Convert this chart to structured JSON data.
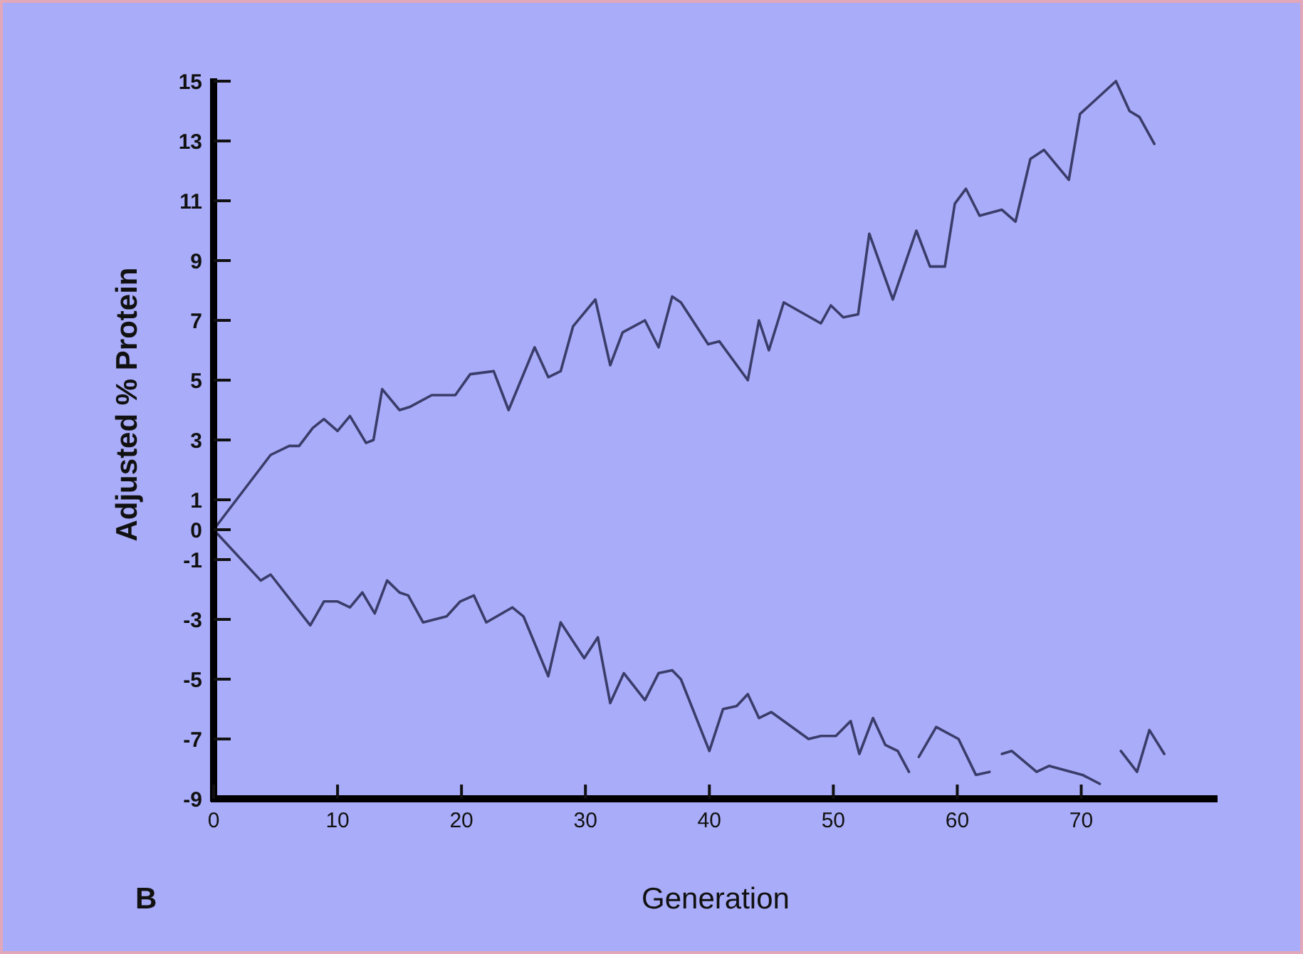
{
  "chart_data": {
    "type": "line",
    "xlabel": "Generation",
    "ylabel": "Adjusted % Protein",
    "annotations": [
      "B"
    ],
    "xlim": [
      0,
      81
    ],
    "ylim": [
      -9,
      15
    ],
    "xticks": [
      0,
      10,
      20,
      30,
      40,
      50,
      60,
      70
    ],
    "yticks": [
      15,
      13,
      11,
      9,
      7,
      5,
      3,
      1,
      0,
      -1,
      -3,
      -5,
      -7,
      -9
    ],
    "marker": "none",
    "line_style": "solid",
    "series": [
      {
        "color": "#3a3d6a",
        "x": [
          0,
          4.6,
          6.1,
          6.9,
          8,
          8.9,
          10,
          11,
          12.3,
          12.9,
          13.6,
          15,
          15.8,
          17.6,
          19.5,
          20.7,
          22.6,
          23.8,
          25.9,
          27,
          28,
          29,
          30.8,
          32,
          33,
          34.8,
          35.9,
          37,
          37.7,
          39.9,
          40.8,
          43.1,
          44,
          44.8,
          46,
          49,
          49.8,
          50.8,
          52,
          52.9,
          54.8,
          56.7,
          57.8,
          59,
          59.8,
          60.7,
          61.8,
          63.6,
          64.7,
          65.9,
          67,
          69,
          69.9,
          72.8,
          73.9,
          74.7,
          75.9
        ],
        "values": [
          0,
          2.5,
          2.8,
          2.8,
          3.4,
          3.7,
          3.3,
          3.8,
          2.9,
          3.0,
          4.7,
          4.0,
          4.1,
          4.5,
          4.5,
          5.2,
          5.3,
          4.0,
          6.1,
          5.1,
          5.3,
          6.8,
          7.7,
          5.5,
          6.6,
          7.0,
          6.1,
          7.8,
          7.6,
          6.2,
          6.3,
          5.0,
          7.0,
          6.0,
          7.6,
          6.9,
          7.5,
          7.1,
          7.2,
          9.9,
          7.7,
          10.0,
          8.8,
          8.8,
          10.9,
          11.4,
          10.5,
          10.7,
          10.3,
          12.4,
          12.7,
          11.7,
          13.9,
          15.0,
          14.0,
          13.8,
          12.9
        ]
      },
      {
        "color": "#3a3d6a",
        "x": [
          0,
          3.8,
          4.6,
          7.8,
          8.9,
          10,
          11,
          12,
          13,
          14,
          15,
          15.7,
          16.9,
          18.8,
          19.9,
          21,
          22,
          24.1,
          25,
          27,
          28,
          29.9,
          31,
          32,
          33.1,
          34.8,
          35.9,
          37,
          37.7,
          40,
          41.1,
          42.2,
          43.1,
          44,
          45,
          48,
          49,
          50.2,
          51.4,
          52.1,
          53.2,
          54.2,
          55.2,
          56.1,
          56.5,
          56.9,
          58.3,
          60.1,
          61.5,
          62.6,
          63.1,
          63.6,
          64.4,
          66.4,
          67.4,
          70.1,
          71.5,
          72.4,
          73.2,
          74.5,
          75.5,
          76.7
        ],
        "values": [
          0,
          -1.7,
          -1.5,
          -3.2,
          -2.4,
          -2.4,
          -2.6,
          -2.1,
          -2.8,
          -1.7,
          -2.1,
          -2.2,
          -3.1,
          -2.9,
          -2.4,
          -2.2,
          -3.1,
          -2.6,
          -2.9,
          -4.9,
          -3.1,
          -4.3,
          -3.6,
          -5.8,
          -4.8,
          -5.7,
          -4.8,
          -4.7,
          -5.0,
          -7.4,
          -6.0,
          -5.9,
          -5.5,
          -6.3,
          -6.1,
          -7.0,
          -6.9,
          -6.9,
          -6.4,
          -7.5,
          -6.3,
          -7.2,
          -7.4,
          -8.1,
          null,
          -7.6,
          -6.6,
          -7.0,
          -8.2,
          -8.1,
          null,
          -7.5,
          -7.4,
          -8.1,
          -7.9,
          -8.2,
          -8.5,
          null,
          -7.4,
          -8.1,
          -6.7,
          -7.5
        ]
      }
    ]
  }
}
